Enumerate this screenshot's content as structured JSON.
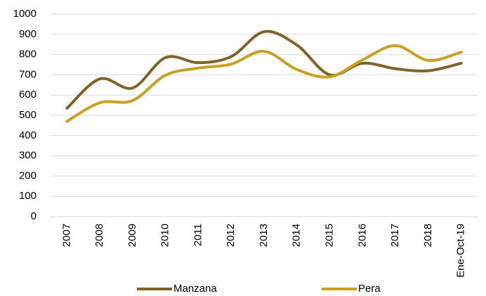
{
  "chart_data": {
    "type": "line",
    "categories": [
      "2007",
      "2008",
      "2009",
      "2010",
      "2011",
      "2012",
      "2013",
      "2014",
      "2015",
      "2016",
      "2017",
      "2018",
      "Ene-Oct-19"
    ],
    "series": [
      {
        "name": "Manzana",
        "color": "#7f6327",
        "values": [
          535,
          680,
          635,
          785,
          760,
          790,
          913,
          847,
          700,
          757,
          730,
          720,
          757
        ]
      },
      {
        "name": "Pera",
        "color": "#c9a020",
        "values": [
          470,
          562,
          573,
          698,
          733,
          753,
          816,
          726,
          690,
          774,
          844,
          771,
          812
        ]
      }
    ],
    "ylim": [
      0,
      1000
    ],
    "yticks": [
      0,
      100,
      200,
      300,
      400,
      500,
      600,
      700,
      800,
      900,
      1000
    ],
    "grid": true,
    "smooth": true,
    "legend": "bottom"
  }
}
